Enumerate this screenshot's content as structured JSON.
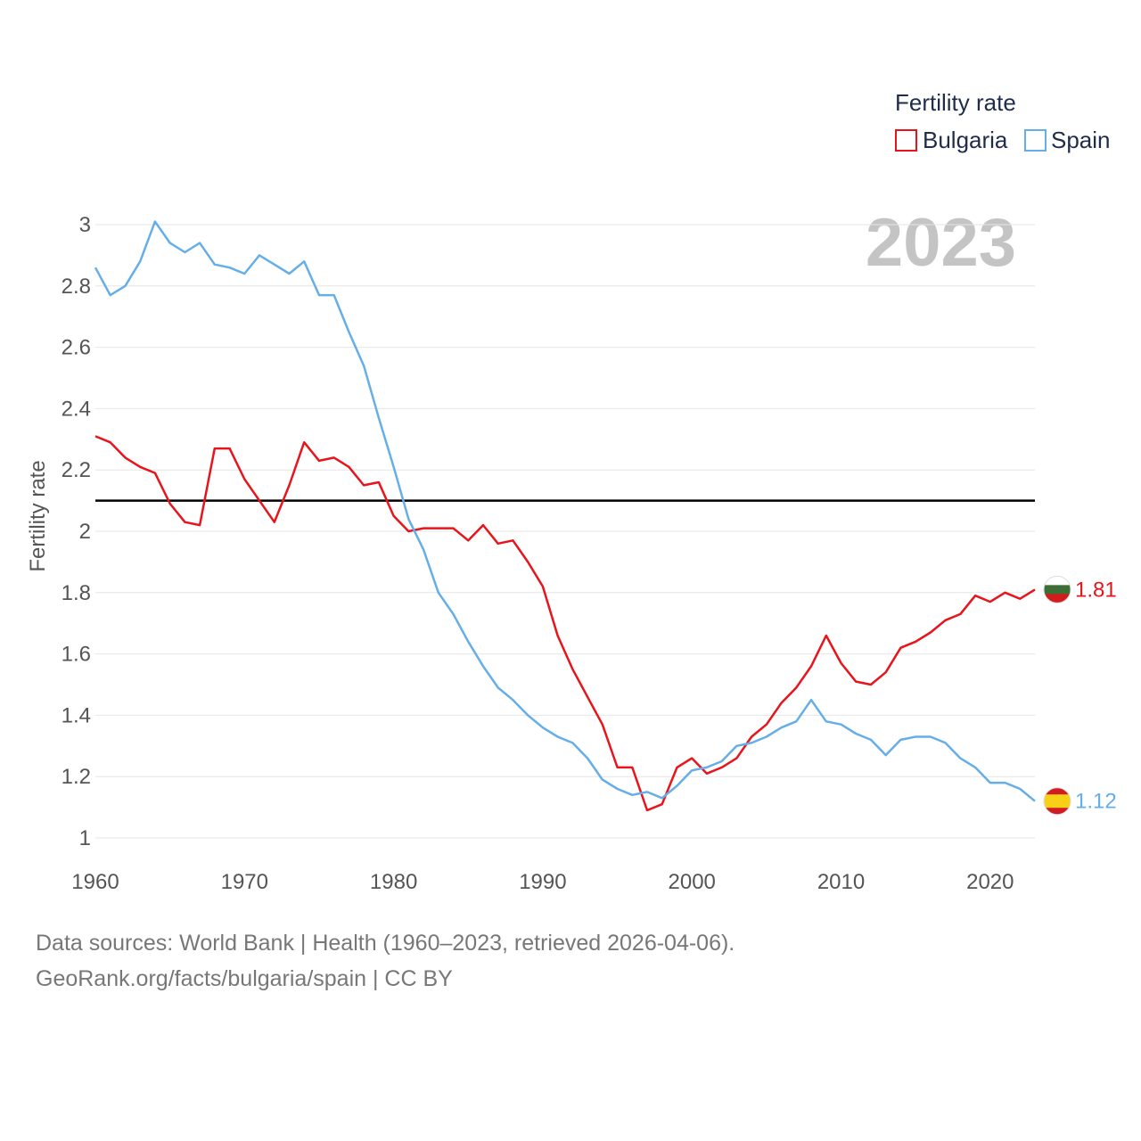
{
  "chart_data": {
    "type": "line",
    "legend_title": "Fertility rate",
    "ylabel": "Fertility rate",
    "year_label": "2023",
    "ylim": [
      1,
      3
    ],
    "xlim": [
      1960,
      2023
    ],
    "yticks": [
      "1",
      "1.2",
      "1.4",
      "1.6",
      "1.8",
      "2",
      "2.2",
      "2.4",
      "2.6",
      "2.8",
      "3"
    ],
    "xticks": [
      "1960",
      "1970",
      "1980",
      "1990",
      "2000",
      "2010",
      "2020"
    ],
    "reference_line": 2.1,
    "x": [
      1960,
      1961,
      1962,
      1963,
      1964,
      1965,
      1966,
      1967,
      1968,
      1969,
      1970,
      1971,
      1972,
      1973,
      1974,
      1975,
      1976,
      1977,
      1978,
      1979,
      1980,
      1981,
      1982,
      1983,
      1984,
      1985,
      1986,
      1987,
      1988,
      1989,
      1990,
      1991,
      1992,
      1993,
      1994,
      1995,
      1996,
      1997,
      1998,
      1999,
      2000,
      2001,
      2002,
      2003,
      2004,
      2005,
      2006,
      2007,
      2008,
      2009,
      2010,
      2011,
      2012,
      2013,
      2014,
      2015,
      2016,
      2017,
      2018,
      2019,
      2020,
      2021,
      2022,
      2023
    ],
    "series": [
      {
        "name": "Bulgaria",
        "color": "#e8141b",
        "end_label": "1.81",
        "values": [
          2.31,
          2.29,
          2.24,
          2.21,
          2.19,
          2.09,
          2.03,
          2.02,
          2.27,
          2.27,
          2.17,
          2.1,
          2.03,
          2.15,
          2.29,
          2.23,
          2.24,
          2.21,
          2.15,
          2.16,
          2.05,
          2.0,
          2.01,
          2.01,
          2.01,
          1.97,
          2.02,
          1.96,
          1.97,
          1.9,
          1.82,
          1.66,
          1.55,
          1.46,
          1.37,
          1.23,
          1.23,
          1.09,
          1.11,
          1.23,
          1.26,
          1.21,
          1.23,
          1.26,
          1.33,
          1.37,
          1.44,
          1.49,
          1.56,
          1.66,
          1.57,
          1.51,
          1.5,
          1.54,
          1.62,
          1.64,
          1.67,
          1.71,
          1.73,
          1.79,
          1.77,
          1.8,
          1.78,
          1.81
        ]
      },
      {
        "name": "Spain",
        "color": "#66aee8",
        "end_label": "1.12",
        "values": [
          2.86,
          2.77,
          2.8,
          2.88,
          3.01,
          2.94,
          2.91,
          2.94,
          2.87,
          2.86,
          2.84,
          2.9,
          2.87,
          2.84,
          2.88,
          2.77,
          2.77,
          2.65,
          2.54,
          2.37,
          2.21,
          2.04,
          1.94,
          1.8,
          1.73,
          1.64,
          1.56,
          1.49,
          1.45,
          1.4,
          1.36,
          1.33,
          1.31,
          1.26,
          1.19,
          1.16,
          1.14,
          1.15,
          1.13,
          1.17,
          1.22,
          1.23,
          1.25,
          1.3,
          1.31,
          1.33,
          1.36,
          1.38,
          1.45,
          1.38,
          1.37,
          1.34,
          1.32,
          1.27,
          1.32,
          1.33,
          1.33,
          1.31,
          1.26,
          1.23,
          1.18,
          1.18,
          1.16,
          1.12
        ]
      }
    ]
  },
  "flags": {
    "bulgaria": [
      "#ffffff",
      "#3c6e35",
      "#d41c1c"
    ],
    "spain": [
      "#d21c24",
      "#f7d117",
      "#d21c24"
    ]
  },
  "footer": {
    "line1": "Data sources: World Bank | Health (1960–2023, retrieved 2026-04-06).",
    "line2": "GeoRank.org/facts/bulgaria/spain | CC BY"
  }
}
